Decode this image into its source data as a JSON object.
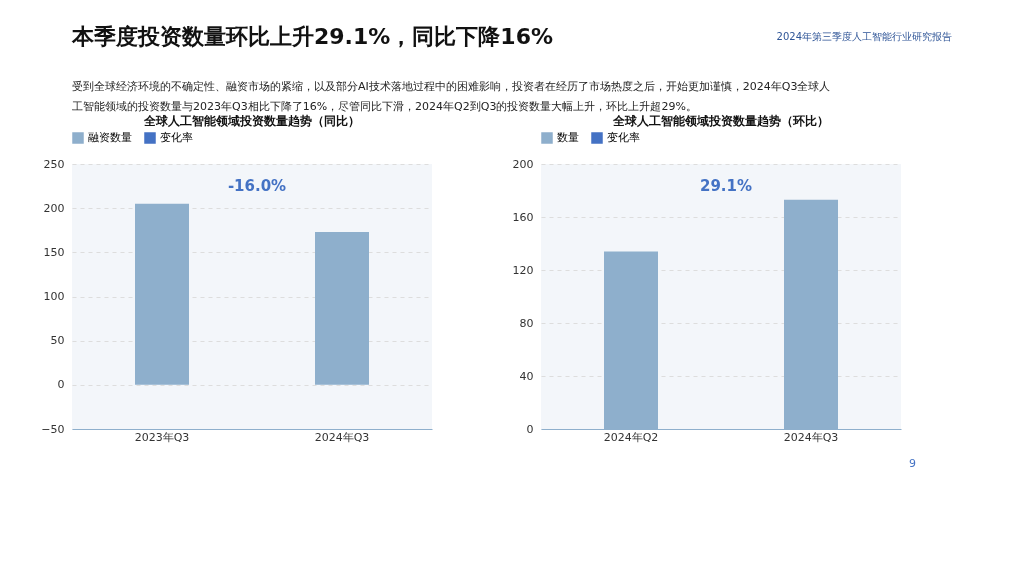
{
  "chart_data": [
    {
      "type": "bar",
      "title": "全球人工智能领域投资数量趋势（同比）",
      "categories": [
        "2023年Q3",
        "2024年Q3"
      ],
      "series": [
        {
          "name": "融资数量",
          "type": "bar",
          "color": "#8eafcc",
          "values": [
            205,
            173
          ]
        },
        {
          "name": "变化率",
          "type": "line",
          "color": "#4472c4",
          "values": [
            null,
            null
          ]
        }
      ],
      "ylim": [
        -50,
        250
      ],
      "yticks": [
        -50,
        0,
        50,
        100,
        150,
        200,
        250
      ],
      "grid": "y",
      "legend": "top",
      "annotations": [
        "本季度投资数量环比上升29.1%，同比下降16%",
        "2024年第三季度人工智能行业研究报告",
        "受到全球经济环境的不确定性、融资市场的紧缩，以及部分AI技术落地过程中的困难影响，投资者在经历了市场热度之后，开始更加谨慎，2024年Q3全球人",
        "工智能领域的投资数量与2023年Q3相比下降了16%，尽管同比下滑，2024年Q2到Q3的投资数量大幅上升，环比上升超29%。",
        "9",
        "-16.0%"
      ]
    },
    {
      "type": "bar",
      "title": "全球人工智能领域投资数量趋势（环比）",
      "categories": [
        "2024年Q2",
        "2024年Q3"
      ],
      "series": [
        {
          "name": "数量",
          "type": "bar",
          "color": "#8eafcc",
          "values": [
            134,
            173
          ]
        },
        {
          "name": "变化率",
          "type": "line",
          "color": "#4472c4",
          "values": [
            null,
            null
          ]
        }
      ],
      "ylim": [
        0,
        200
      ],
      "yticks": [
        0,
        40,
        80,
        120,
        160,
        200
      ],
      "grid": "y",
      "legend": "top",
      "annotations": [
        "29.1%"
      ]
    }
  ]
}
